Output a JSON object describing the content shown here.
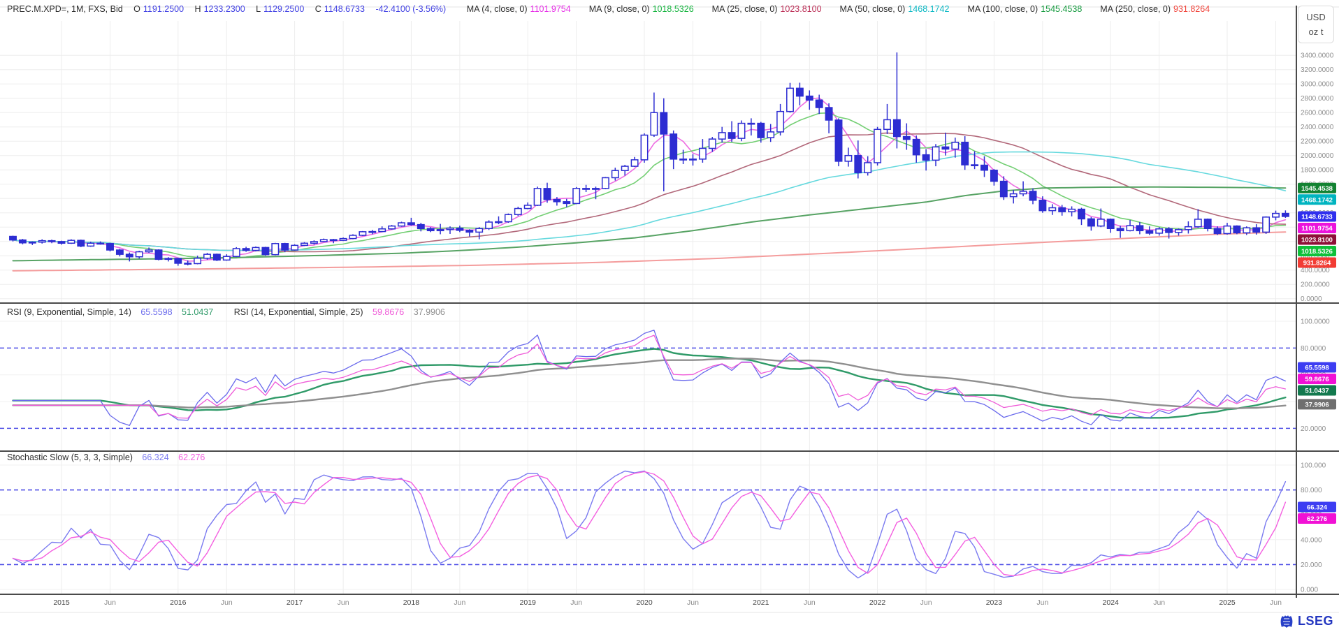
{
  "header": {
    "instrument": "PREC.M.XPD=, 1M, FXS, Bid",
    "o_label": "O",
    "o": "1191.2500",
    "h_label": "H",
    "h": "1233.2300",
    "l_label": "L",
    "l": "1129.2500",
    "c_label": "C",
    "c": "1148.6733",
    "change": "-42.4100 (-3.56%)",
    "value_color": "#4141e4"
  },
  "axis_units": {
    "currency": "USD",
    "unit": "oz t"
  },
  "rsi_header": {
    "label_1": "RSI (9, Exponential, Simple, 14)",
    "value_1": "65.5598",
    "value_2": "51.0437",
    "label_2": "RSI (14, Exponential, Simple, 25)",
    "value_3": "59.8676",
    "value_4": "37.9906"
  },
  "stoch_header": {
    "label": "Stochastic Slow (5, 3, 3, Simple)",
    "value_k": "66.324",
    "value_d": "62.276"
  },
  "logo": {
    "text": "LSEG"
  },
  "chart_data": {
    "type": "candlestick",
    "symbol": "PREC.M.XPD=",
    "interval": "1M",
    "start_month": "2014-08",
    "price_axis": {
      "min": 0,
      "max": 3400,
      "step": 200,
      "decimals": 4
    },
    "candle_color": "#2d2dd2",
    "grid_color": "#ededed",
    "dashed_color": "#5050e6",
    "axis_text_color": "#8c8c8c",
    "close_tag": {
      "text": "1148.6733",
      "value": 1148.6733,
      "bg": "#2f2fee"
    },
    "candles": [
      [
        870,
        880,
        800,
        820
      ],
      [
        820,
        835,
        760,
        780
      ],
      [
        780,
        800,
        750,
        790
      ],
      [
        790,
        830,
        770,
        810
      ],
      [
        810,
        825,
        775,
        798
      ],
      [
        798,
        810,
        755,
        775
      ],
      [
        775,
        830,
        765,
        815
      ],
      [
        815,
        825,
        720,
        735
      ],
      [
        735,
        795,
        725,
        775
      ],
      [
        775,
        800,
        755,
        770
      ],
      [
        770,
        780,
        660,
        680
      ],
      [
        680,
        695,
        590,
        620
      ],
      [
        620,
        645,
        520,
        585
      ],
      [
        585,
        670,
        560,
        655
      ],
      [
        655,
        715,
        640,
        680
      ],
      [
        680,
        690,
        535,
        550
      ],
      [
        550,
        580,
        520,
        562
      ],
      [
        562,
        570,
        460,
        495
      ],
      [
        495,
        535,
        465,
        490
      ],
      [
        490,
        600,
        480,
        565
      ],
      [
        565,
        640,
        545,
        620
      ],
      [
        620,
        630,
        525,
        540
      ],
      [
        540,
        620,
        530,
        590
      ],
      [
        590,
        720,
        580,
        700
      ],
      [
        700,
        725,
        655,
        675
      ],
      [
        675,
        730,
        660,
        715
      ],
      [
        715,
        725,
        600,
        615
      ],
      [
        615,
        780,
        605,
        770
      ],
      [
        770,
        780,
        650,
        680
      ],
      [
        680,
        760,
        670,
        745
      ],
      [
        745,
        790,
        735,
        775
      ],
      [
        775,
        815,
        755,
        798
      ],
      [
        798,
        840,
        790,
        825
      ],
      [
        825,
        835,
        775,
        815
      ],
      [
        815,
        855,
        805,
        840
      ],
      [
        840,
        900,
        830,
        885
      ],
      [
        885,
        945,
        875,
        935
      ],
      [
        935,
        960,
        900,
        938
      ],
      [
        938,
        1010,
        930,
        975
      ],
      [
        975,
        1030,
        965,
        1015
      ],
      [
        1015,
        1075,
        1005,
        1060
      ],
      [
        1060,
        1130,
        1020,
        1035
      ],
      [
        1035,
        1060,
        940,
        980
      ],
      [
        980,
        1000,
        930,
        950
      ],
      [
        950,
        1045,
        900,
        965
      ],
      [
        965,
        1010,
        905,
        985
      ],
      [
        985,
        1020,
        930,
        955
      ],
      [
        955,
        970,
        870,
        930
      ],
      [
        930,
        1000,
        830,
        980
      ],
      [
        980,
        1095,
        960,
        1070
      ],
      [
        1070,
        1150,
        1040,
        1075
      ],
      [
        1075,
        1190,
        1060,
        1175
      ],
      [
        1175,
        1285,
        1155,
        1260
      ],
      [
        1260,
        1345,
        1250,
        1305
      ],
      [
        1305,
        1565,
        1295,
        1540
      ],
      [
        1540,
        1620,
        1340,
        1385
      ],
      [
        1385,
        1420,
        1300,
        1355
      ],
      [
        1355,
        1395,
        1280,
        1330
      ],
      [
        1330,
        1560,
        1320,
        1540
      ],
      [
        1540,
        1590,
        1490,
        1535
      ],
      [
        1535,
        1565,
        1390,
        1540
      ],
      [
        1540,
        1700,
        1530,
        1690
      ],
      [
        1690,
        1830,
        1650,
        1790
      ],
      [
        1790,
        1870,
        1720,
        1850
      ],
      [
        1850,
        1980,
        1840,
        1940
      ],
      [
        1940,
        2310,
        1900,
        2285
      ],
      [
        2285,
        2880,
        2260,
        2600
      ],
      [
        2600,
        2800,
        1500,
        2300
      ],
      [
        2300,
        2350,
        1810,
        1950
      ],
      [
        1950,
        2080,
        1880,
        1940
      ],
      [
        1940,
        2020,
        1860,
        1950
      ],
      [
        1950,
        2230,
        1900,
        2100
      ],
      [
        2100,
        2260,
        2050,
        2230
      ],
      [
        2230,
        2400,
        2180,
        2320
      ],
      [
        2320,
        2480,
        2190,
        2240
      ],
      [
        2240,
        2490,
        2200,
        2450
      ],
      [
        2450,
        2520,
        2280,
        2450
      ],
      [
        2450,
        2470,
        2180,
        2250
      ],
      [
        2250,
        2440,
        2190,
        2330
      ],
      [
        2330,
        2720,
        2280,
        2615
      ],
      [
        2615,
        3015,
        2600,
        2940
      ],
      [
        2940,
        3017,
        2700,
        2830
      ],
      [
        2830,
        2910,
        2640,
        2775
      ],
      [
        2775,
        2850,
        2580,
        2670
      ],
      [
        2670,
        2730,
        2310,
        2495
      ],
      [
        2495,
        2520,
        1850,
        1920
      ],
      [
        1920,
        2110,
        1845,
        2000
      ],
      [
        2000,
        2210,
        1680,
        1760
      ],
      [
        1760,
        1990,
        1720,
        1900
      ],
      [
        1900,
        2400,
        1860,
        2365
      ],
      [
        2365,
        2720,
        2300,
        2500
      ],
      [
        2500,
        3440,
        2100,
        2265
      ],
      [
        2265,
        2450,
        2080,
        2225
      ],
      [
        2225,
        2280,
        1900,
        2010
      ],
      [
        2010,
        2090,
        1790,
        1935
      ],
      [
        1935,
        2160,
        1850,
        2120
      ],
      [
        2120,
        2320,
        2000,
        2090
      ],
      [
        2090,
        2250,
        1970,
        2185
      ],
      [
        2185,
        2270,
        1800,
        1870
      ],
      [
        1870,
        2060,
        1810,
        1865
      ],
      [
        1865,
        1990,
        1700,
        1795
      ],
      [
        1795,
        1810,
        1580,
        1640
      ],
      [
        1640,
        1710,
        1380,
        1425
      ],
      [
        1425,
        1520,
        1330,
        1465
      ],
      [
        1465,
        1640,
        1430,
        1500
      ],
      [
        1500,
        1540,
        1320,
        1375
      ],
      [
        1375,
        1430,
        1200,
        1230
      ],
      [
        1230,
        1320,
        1170,
        1270
      ],
      [
        1270,
        1310,
        1160,
        1215
      ],
      [
        1215,
        1290,
        1150,
        1250
      ],
      [
        1250,
        1270,
        1030,
        1115
      ],
      [
        1115,
        1140,
        950,
        1015
      ],
      [
        1015,
        1260,
        1000,
        1110
      ],
      [
        1110,
        1120,
        920,
        980
      ],
      [
        980,
        1020,
        850,
        950
      ],
      [
        950,
        1100,
        940,
        1020
      ],
      [
        1020,
        1070,
        900,
        950
      ],
      [
        950,
        1010,
        890,
        915
      ],
      [
        915,
        1000,
        880,
        975
      ],
      [
        975,
        1000,
        840,
        925
      ],
      [
        925,
        980,
        880,
        965
      ],
      [
        965,
        1080,
        910,
        1005
      ],
      [
        1005,
        1250,
        990,
        1110
      ],
      [
        1110,
        1120,
        940,
        980
      ],
      [
        980,
        1010,
        890,
        910
      ],
      [
        910,
        1060,
        895,
        1015
      ],
      [
        1015,
        1025,
        900,
        920
      ],
      [
        920,
        1010,
        890,
        990
      ],
      [
        990,
        1040,
        895,
        930
      ],
      [
        930,
        1150,
        905,
        1140
      ],
      [
        1140,
        1230,
        1095,
        1191
      ],
      [
        1191.25,
        1233.23,
        1129.25,
        1148.67
      ]
    ],
    "moving_averages": [
      {
        "legend_label": "MA (4, close, 0)",
        "period": 4,
        "value": "1101.9754",
        "tag_value": 1101.9754,
        "value_color": "#e62ce6",
        "line_color": "#ee6ce2",
        "tag_bg": "#ec13dc"
      },
      {
        "legend_label": "MA (9, close, 0)",
        "period": 9,
        "value": "1018.5326",
        "tag_value": 1018.5326,
        "value_color": "#12b33c",
        "line_color": "#74cf74",
        "tag_bg": "#0fc03a"
      },
      {
        "legend_label": "MA (25, close, 0)",
        "period": 25,
        "value": "1023.8100",
        "tag_value": 1023.81,
        "value_color": "#bb2d55",
        "line_color": "#b2687a",
        "tag_bg": "#8e1038"
      },
      {
        "legend_label": "MA (50, close, 0)",
        "period": 50,
        "value": "1468.1742",
        "tag_value": 1468.1742,
        "value_color": "#0ab8c4",
        "line_color": "#66d9de",
        "tag_bg": "#00b4c0"
      },
      {
        "legend_label": "MA (100, close, 0)",
        "period": 100,
        "value": "1545.4538",
        "tag_value": 1545.4538,
        "value_color": "#149a3e",
        "line_color": "#57a364",
        "tag_bg": "#128231",
        "keypoints": [
          [
            0,
            530
          ],
          [
            8,
            545
          ],
          [
            16,
            558
          ],
          [
            24,
            578
          ],
          [
            32,
            605
          ],
          [
            40,
            635
          ],
          [
            46,
            672
          ],
          [
            52,
            720
          ],
          [
            58,
            780
          ],
          [
            64,
            850
          ],
          [
            70,
            950
          ],
          [
            76,
            1070
          ],
          [
            82,
            1170
          ],
          [
            88,
            1260
          ],
          [
            94,
            1350
          ],
          [
            98,
            1440
          ],
          [
            102,
            1505
          ],
          [
            106,
            1545
          ],
          [
            112,
            1558
          ],
          [
            118,
            1560
          ],
          [
            124,
            1556
          ],
          [
            131,
            1546
          ]
        ]
      },
      {
        "legend_label": "MA (250, close, 0)",
        "period": 250,
        "value": "931.8264",
        "tag_value": 931.8264,
        "value_color": "#f1453c",
        "line_color": "#f49c9c",
        "tag_bg": "#f23c34",
        "keypoints": [
          [
            0,
            390
          ],
          [
            12,
            405
          ],
          [
            24,
            422
          ],
          [
            36,
            442
          ],
          [
            48,
            468
          ],
          [
            60,
            505
          ],
          [
            72,
            560
          ],
          [
            84,
            635
          ],
          [
            92,
            690
          ],
          [
            100,
            745
          ],
          [
            108,
            800
          ],
          [
            116,
            852
          ],
          [
            124,
            900
          ],
          [
            131,
            932
          ]
        ]
      }
    ],
    "rsi_panel": {
      "axis_labels": [
        100,
        80,
        60,
        40,
        20
      ],
      "decimals": 4,
      "dashed_levels": [
        80,
        20
      ],
      "series": [
        {
          "name": "rsi-9",
          "rsi_period": 9,
          "line_color": "#6a6aec",
          "width": 1.3,
          "tag": "65.5598",
          "tag_value": 65.5598,
          "tag_bg": "#3d3df2"
        },
        {
          "name": "rsi-9-signal",
          "sma_of": 0,
          "sma_period": 14,
          "line_color": "#2f9a68",
          "width": 2.4,
          "tag": "51.0437",
          "tag_value": 51.0437,
          "tag_bg": "#13794e"
        },
        {
          "name": "rsi-14",
          "rsi_period": 14,
          "line_color": "#ef59d8",
          "width": 1.3,
          "tag": "59.8676",
          "tag_value": 59.8676,
          "tag_bg": "#f111d5"
        },
        {
          "name": "rsi-14-signal",
          "sma_of": 2,
          "sma_period": 25,
          "line_color": "#8f8f8f",
          "width": 2.4,
          "tag": "37.9906",
          "tag_value": 37.9906,
          "tag_bg": "#6f6f6f"
        }
      ]
    },
    "stoch_panel": {
      "axis_labels": [
        100,
        80,
        60,
        40,
        20,
        0
      ],
      "decimals": 3,
      "dashed_levels": [
        80,
        20
      ],
      "k_period": 5,
      "k_smooth": 3,
      "d_period": 3,
      "k": {
        "line_color": "#7b7bf0",
        "tag": "66.324",
        "tag_value": 66.324,
        "tag_bg": "#3d3df2"
      },
      "d": {
        "line_color": "#f45fe0",
        "tag": "62.276",
        "tag_value": 62.276,
        "tag_bg": "#f111d5"
      }
    },
    "x_labels": [
      {
        "idx": 5,
        "text": "2015",
        "year": true
      },
      {
        "idx": 10,
        "text": "Jun"
      },
      {
        "idx": 17,
        "text": "2016",
        "year": true
      },
      {
        "idx": 22,
        "text": "Jun"
      },
      {
        "idx": 29,
        "text": "2017",
        "year": true
      },
      {
        "idx": 34,
        "text": "Jun"
      },
      {
        "idx": 41,
        "text": "2018",
        "year": true
      },
      {
        "idx": 46,
        "text": "Jun"
      },
      {
        "idx": 53,
        "text": "2019",
        "year": true
      },
      {
        "idx": 58,
        "text": "Jun"
      },
      {
        "idx": 65,
        "text": "2020",
        "year": true
      },
      {
        "idx": 70,
        "text": "Jun"
      },
      {
        "idx": 77,
        "text": "2021",
        "year": true
      },
      {
        "idx": 82,
        "text": "Jun"
      },
      {
        "idx": 89,
        "text": "2022",
        "year": true
      },
      {
        "idx": 94,
        "text": "Jun"
      },
      {
        "idx": 101,
        "text": "2023",
        "year": true
      },
      {
        "idx": 106,
        "text": "Jun"
      },
      {
        "idx": 113,
        "text": "2024",
        "year": true
      },
      {
        "idx": 118,
        "text": "Jun"
      },
      {
        "idx": 125,
        "text": "2025",
        "year": true
      },
      {
        "idx": 130,
        "text": "Jun"
      }
    ]
  }
}
